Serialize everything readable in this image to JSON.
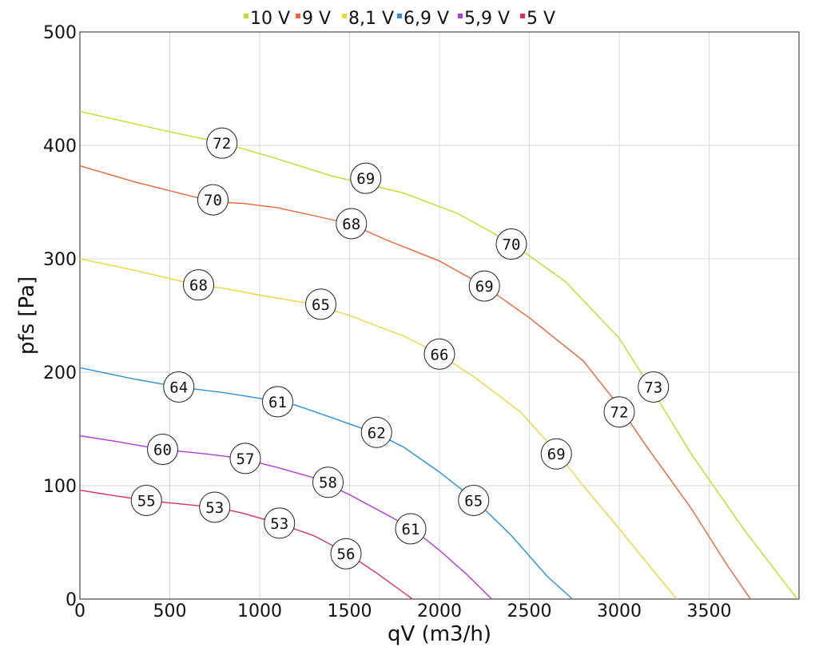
{
  "chart_data": {
    "type": "line",
    "title": "",
    "xlabel": "qV (m3/h)",
    "ylabel": "pfs [Pa]",
    "xlim": [
      0,
      4000
    ],
    "ylim": [
      0,
      500
    ],
    "xticks": [
      0,
      500,
      1000,
      1500,
      2000,
      2500,
      3000,
      3500
    ],
    "yticks": [
      0,
      100,
      200,
      300,
      400,
      500
    ],
    "grid": true,
    "legend_position": "top",
    "series": [
      {
        "name": "10 V",
        "color": "#bfdc2a",
        "points": [
          [
            0,
            430
          ],
          [
            500,
            412
          ],
          [
            800,
            402
          ],
          [
            1100,
            388
          ],
          [
            1400,
            373
          ],
          [
            1800,
            358
          ],
          [
            2100,
            340
          ],
          [
            2400,
            314
          ],
          [
            2700,
            280
          ],
          [
            3000,
            230
          ],
          [
            3200,
            180
          ],
          [
            3400,
            128
          ],
          [
            3700,
            60
          ],
          [
            3990,
            0
          ]
        ],
        "labels": [
          {
            "x": 790,
            "y": 402,
            "text": "72"
          },
          {
            "x": 1590,
            "y": 371,
            "text": "69"
          },
          {
            "x": 2400,
            "y": 313,
            "text": "70"
          },
          {
            "x": 3190,
            "y": 187,
            "text": "73"
          }
        ]
      },
      {
        "name": "9 V",
        "color": "#e8663a",
        "points": [
          [
            0,
            382
          ],
          [
            300,
            368
          ],
          [
            600,
            356
          ],
          [
            760,
            350
          ],
          [
            900,
            349
          ],
          [
            1100,
            345
          ],
          [
            1300,
            338
          ],
          [
            1500,
            331
          ],
          [
            1700,
            317
          ],
          [
            2000,
            298
          ],
          [
            2250,
            276
          ],
          [
            2500,
            248
          ],
          [
            2800,
            210
          ],
          [
            3000,
            170
          ],
          [
            3150,
            135
          ],
          [
            3400,
            80
          ],
          [
            3600,
            30
          ],
          [
            3730,
            0
          ]
        ],
        "labels": [
          {
            "x": 740,
            "y": 352,
            "text": "70"
          },
          {
            "x": 1510,
            "y": 331,
            "text": "68"
          },
          {
            "x": 2250,
            "y": 276,
            "text": "69"
          },
          {
            "x": 3000,
            "y": 165,
            "text": "72"
          }
        ]
      },
      {
        "name": "8,1 V",
        "color": "#e7d83d",
        "points": [
          [
            0,
            300
          ],
          [
            300,
            290
          ],
          [
            650,
            277
          ],
          [
            800,
            274
          ],
          [
            1000,
            268
          ],
          [
            1300,
            260
          ],
          [
            1500,
            250
          ],
          [
            1800,
            232
          ],
          [
            2000,
            216
          ],
          [
            2200,
            195
          ],
          [
            2450,
            165
          ],
          [
            2650,
            130
          ],
          [
            2800,
            100
          ],
          [
            3000,
            62
          ],
          [
            3200,
            23
          ],
          [
            3320,
            0
          ]
        ],
        "labels": [
          {
            "x": 660,
            "y": 277,
            "text": "68"
          },
          {
            "x": 1340,
            "y": 260,
            "text": "65"
          },
          {
            "x": 2000,
            "y": 216,
            "text": "66"
          },
          {
            "x": 2650,
            "y": 128,
            "text": "69"
          }
        ]
      },
      {
        "name": "6,9 V",
        "color": "#2d8fdc",
        "points": [
          [
            0,
            204
          ],
          [
            300,
            194
          ],
          [
            550,
            187
          ],
          [
            800,
            182
          ],
          [
            1000,
            177
          ],
          [
            1200,
            171
          ],
          [
            1400,
            160
          ],
          [
            1650,
            146
          ],
          [
            1800,
            134
          ],
          [
            2000,
            112
          ],
          [
            2200,
            87
          ],
          [
            2400,
            56
          ],
          [
            2600,
            20
          ],
          [
            2740,
            0
          ]
        ],
        "labels": [
          {
            "x": 550,
            "y": 187,
            "text": "64"
          },
          {
            "x": 1100,
            "y": 174,
            "text": "61"
          },
          {
            "x": 1650,
            "y": 147,
            "text": "62"
          },
          {
            "x": 2190,
            "y": 87,
            "text": "65"
          }
        ]
      },
      {
        "name": "5,9 V",
        "color": "#b13ad8",
        "points": [
          [
            0,
            144
          ],
          [
            200,
            139
          ],
          [
            450,
            132
          ],
          [
            700,
            128
          ],
          [
            900,
            124
          ],
          [
            1100,
            116
          ],
          [
            1300,
            107
          ],
          [
            1500,
            92
          ],
          [
            1700,
            75
          ],
          [
            1850,
            62
          ],
          [
            2000,
            43
          ],
          [
            2150,
            22
          ],
          [
            2290,
            0
          ]
        ],
        "labels": [
          {
            "x": 460,
            "y": 132,
            "text": "60"
          },
          {
            "x": 920,
            "y": 124,
            "text": "57"
          },
          {
            "x": 1380,
            "y": 103,
            "text": "58"
          },
          {
            "x": 1840,
            "y": 62,
            "text": "61"
          }
        ]
      },
      {
        "name": "5 V",
        "color": "#d83063",
        "points": [
          [
            0,
            96
          ],
          [
            200,
            91
          ],
          [
            370,
            87
          ],
          [
            550,
            84
          ],
          [
            750,
            81
          ],
          [
            900,
            76
          ],
          [
            1100,
            67
          ],
          [
            1300,
            56
          ],
          [
            1480,
            41
          ],
          [
            1650,
            23
          ],
          [
            1850,
            0
          ]
        ],
        "labels": [
          {
            "x": 370,
            "y": 87,
            "text": "55"
          },
          {
            "x": 750,
            "y": 81,
            "text": "53"
          },
          {
            "x": 1110,
            "y": 67,
            "text": "53"
          },
          {
            "x": 1480,
            "y": 40,
            "text": "56"
          }
        ]
      }
    ]
  }
}
